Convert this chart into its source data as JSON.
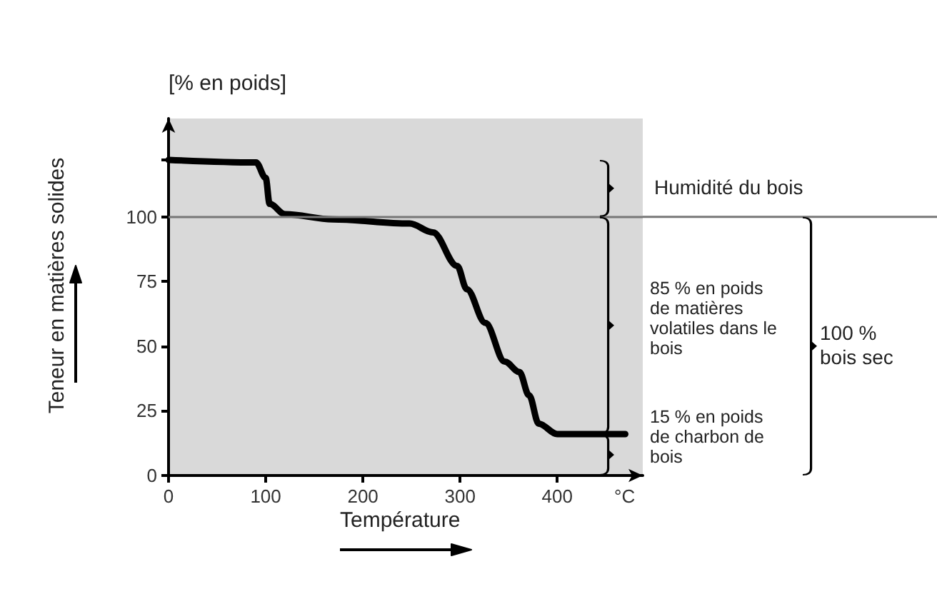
{
  "chart_data": {
    "type": "line",
    "xlabel": "Température",
    "ylabel": "Teneur en matières solides",
    "annotations": [
      "[% en poids]",
      "°C",
      "Humidité du bois",
      "85 % en poids de matières volatiles dans le bois",
      "15 % en poids de charbon de bois",
      "100 % bois sec"
    ],
    "series": [
      {
        "color": "#000000",
        "x": [
          0,
          90,
          100,
          104,
          120,
          169,
          248,
          272,
          297,
          307,
          326,
          346,
          361,
          371,
          381,
          400,
          470
        ],
        "values": [
          122,
          121,
          115,
          105,
          101,
          99,
          97.4,
          94,
          81,
          72,
          59,
          44,
          40,
          31,
          20,
          16,
          16
        ]
      }
    ],
    "xlim": [
      0,
      488
    ],
    "xticks": [
      0,
      100,
      200,
      300,
      400
    ],
    "ylim": [
      0,
      138
    ],
    "yticks": [
      0,
      25,
      50,
      75,
      100,
      {
        "value": 122,
        "label": null
      }
    ],
    "ref_lines": [
      {
        "axis": "y",
        "value": 100,
        "color": "#777777"
      }
    ],
    "grid": false
  }
}
